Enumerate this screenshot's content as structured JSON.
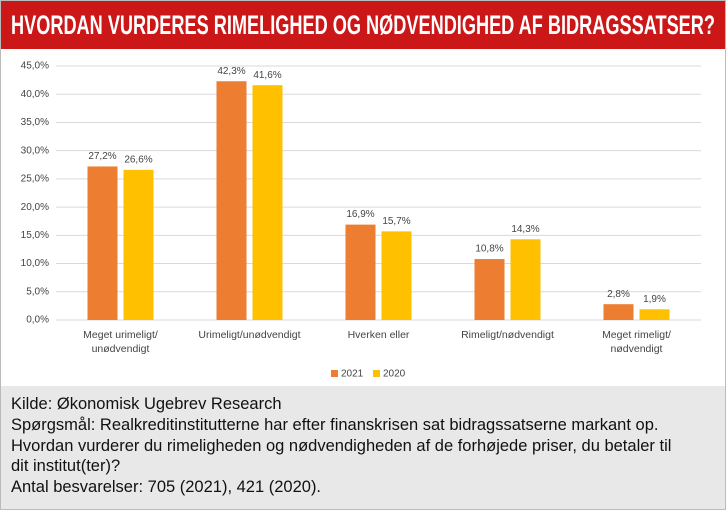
{
  "chart_data": {
    "type": "bar",
    "title": "HVORDAN VURDERES RIMELIGHED OG NØDVENDIGHED AF BIDRAGSSATSER?",
    "categories": [
      "Meget urimeligt/\nunødvendigt",
      "Urimeligt/unødvendigt",
      "Hverken eller",
      "Rimeligt/nødvendigt",
      "Meget rimeligt/\nnødvendigt"
    ],
    "series": [
      {
        "name": "2021",
        "color": "#ed7d31",
        "values": [
          27.2,
          42.3,
          16.9,
          10.8,
          2.8
        ],
        "value_labels": [
          "27,2%",
          "42,3%",
          "16,9%",
          "10,8%",
          "2,8%"
        ]
      },
      {
        "name": "2020",
        "color": "#ffc000",
        "values": [
          26.6,
          41.6,
          15.7,
          14.3,
          1.9
        ],
        "value_labels": [
          "26,6%",
          "41,6%",
          "15,7%",
          "14,3%",
          "1,9%"
        ]
      }
    ],
    "ylim": [
      0,
      45
    ],
    "yticks": [
      {
        "value": 0,
        "label": "0,0%"
      },
      {
        "value": 5,
        "label": "5,0%"
      },
      {
        "value": 10,
        "label": "10,0%"
      },
      {
        "value": 15,
        "label": "15,0%"
      },
      {
        "value": 20,
        "label": "20,0%"
      },
      {
        "value": 25,
        "label": "25,0%"
      },
      {
        "value": 30,
        "label": "30,0%"
      },
      {
        "value": 35,
        "label": "35,0%"
      },
      {
        "value": 40,
        "label": "40,0%"
      },
      {
        "value": 45,
        "label": "45,0%"
      }
    ],
    "grid": true,
    "legend": "bottom",
    "source": "Kilde: Økonomisk Ugebrev Research",
    "question": "Spørgsmål: Realkreditinstitutterne har efter finanskrisen sat bidragssatserne markant op. Hvordan vurderer du rimeligheden og nødvendigheden af de forhøjede priser, du betaler til dit institut(ter)?",
    "responses": "Antal besvarelser: 705 (2021), 421 (2020)."
  }
}
